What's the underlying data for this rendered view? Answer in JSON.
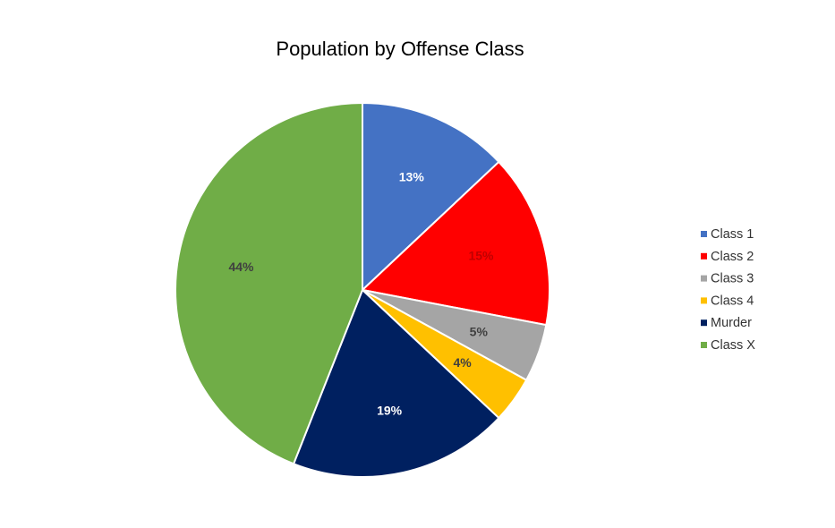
{
  "chart_data": {
    "type": "pie",
    "title": "Population by Offense Class",
    "categories": [
      "Class 1",
      "Class 2",
      "Class 3",
      "Class 4",
      "Murder",
      "Class X"
    ],
    "values": [
      13,
      15,
      5,
      4,
      19,
      44
    ],
    "labels": [
      "13%",
      "15%",
      "5%",
      "4%",
      "19%",
      "44%"
    ],
    "colors": [
      "#4472C4",
      "#FF0000",
      "#A5A5A5",
      "#FFC000",
      "#002060",
      "#70AD47"
    ],
    "label_colors": [
      "#FFFFFF",
      "#C00000",
      "#404040",
      "#404040",
      "#FFFFFF",
      "#404040"
    ],
    "legend_position": "right"
  }
}
